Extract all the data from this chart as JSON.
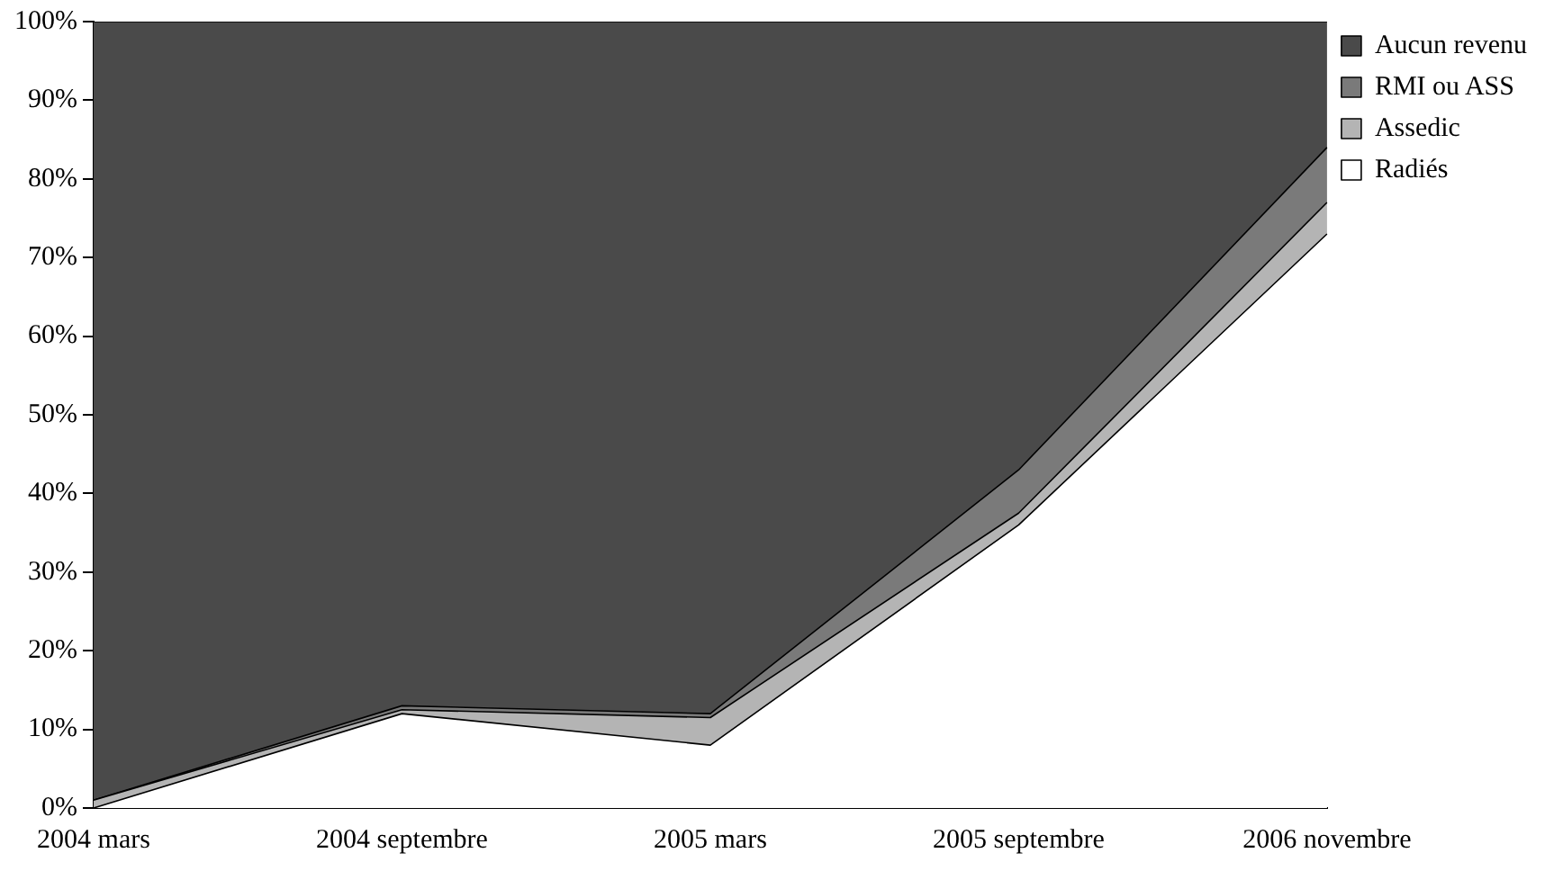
{
  "chart_data": {
    "type": "area",
    "stacked": true,
    "categories": [
      "2004 mars",
      "2004 septembre",
      "2005 mars",
      "2005 septembre",
      "2006 novembre"
    ],
    "series": [
      {
        "name": "Radiés",
        "color": "#ffffff",
        "values": [
          0,
          12,
          8,
          36,
          73
        ]
      },
      {
        "name": "Assedic",
        "color": "#b4b4b4",
        "values": [
          1,
          0.5,
          3.5,
          1.5,
          4
        ]
      },
      {
        "name": "RMI ou ASS",
        "color": "#7a7a7a",
        "values": [
          0,
          0.5,
          0.5,
          5.5,
          7
        ]
      },
      {
        "name": "Aucun revenu",
        "color": "#4a4a4a",
        "values": [
          99,
          87,
          88,
          57,
          16
        ]
      }
    ],
    "ylim": [
      0,
      100
    ],
    "yticks": [
      {
        "value": 0,
        "label": "0%"
      },
      {
        "value": 10,
        "label": "10%"
      },
      {
        "value": 20,
        "label": "20%"
      },
      {
        "value": 30,
        "label": "30%"
      },
      {
        "value": 40,
        "label": "40%"
      },
      {
        "value": 50,
        "label": "50%"
      },
      {
        "value": 60,
        "label": "60%"
      },
      {
        "value": 70,
        "label": "70%"
      },
      {
        "value": 80,
        "label": "80%"
      },
      {
        "value": 90,
        "label": "90%"
      },
      {
        "value": 100,
        "label": "100%"
      }
    ],
    "grid": false,
    "legend": "top right"
  }
}
